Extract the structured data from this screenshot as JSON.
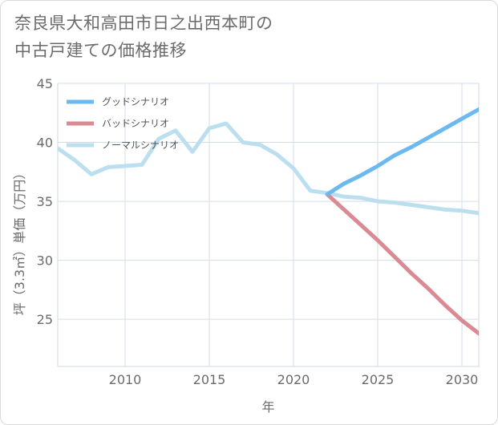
{
  "title_lines": [
    "奈良県大和高田市日之出西本町の",
    "中古戸建ての価格推移"
  ],
  "chart_data": {
    "type": "line",
    "title": "奈良県大和高田市日之出西本町の中古戸建ての価格推移",
    "xlabel": "年",
    "ylabel": "坪（3.3㎡）単価（万円）",
    "xlim": [
      2006,
      2031
    ],
    "ylim": [
      21,
      45
    ],
    "x_ticks": [
      2010,
      2015,
      2020,
      2025,
      2030
    ],
    "y_ticks": [
      25,
      30,
      35,
      40,
      45
    ],
    "grid": true,
    "legend_position": "top-left",
    "series": [
      {
        "name": "グッドシナリオ",
        "color": "#6bb9ef",
        "x": [
          2022,
          2023,
          2024,
          2025,
          2026,
          2027,
          2028,
          2029,
          2030,
          2031
        ],
        "values": [
          35.6,
          36.5,
          37.2,
          38.0,
          38.9,
          39.6,
          40.4,
          41.2,
          42.0,
          42.8
        ]
      },
      {
        "name": "バッドシナリオ",
        "color": "#d98a92",
        "x": [
          2022,
          2023,
          2024,
          2025,
          2026,
          2027,
          2028,
          2029,
          2030,
          2031
        ],
        "values": [
          35.6,
          34.3,
          33.0,
          31.7,
          30.3,
          28.9,
          27.6,
          26.2,
          24.9,
          23.8
        ]
      },
      {
        "name": "ノーマルシナリオ",
        "color": "#bcdff0",
        "x": [
          2006,
          2007,
          2008,
          2009,
          2010,
          2011,
          2012,
          2013,
          2014,
          2015,
          2016,
          2017,
          2018,
          2019,
          2020,
          2021,
          2022,
          2023,
          2024,
          2025,
          2026,
          2027,
          2028,
          2029,
          2030,
          2031
        ],
        "values": [
          39.5,
          38.5,
          37.3,
          37.9,
          38.0,
          38.1,
          40.3,
          41.0,
          39.2,
          41.2,
          41.6,
          40.0,
          39.8,
          39.0,
          37.8,
          35.9,
          35.7,
          35.4,
          35.3,
          35.0,
          34.9,
          34.7,
          34.5,
          34.3,
          34.2,
          34.0
        ]
      }
    ]
  }
}
